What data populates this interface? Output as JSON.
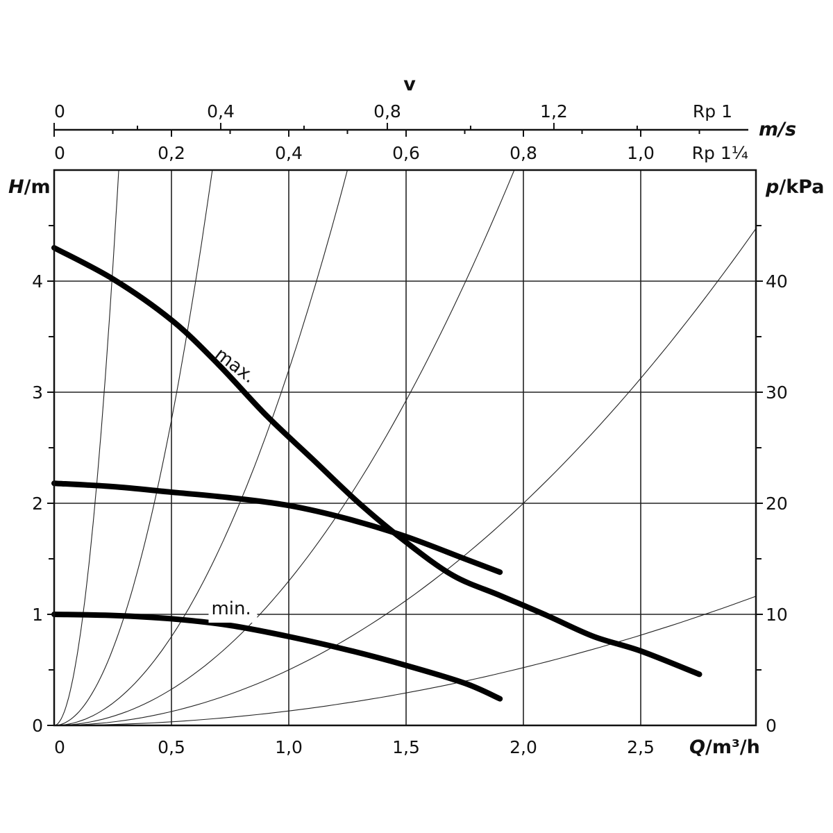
{
  "chart_data": {
    "type": "line",
    "xlabel_prefix": "Q",
    "xlabel_unit": "/m³/h",
    "ylabel_left_prefix": "H",
    "ylabel_left_unit": "/m",
    "ylabel_right_prefix": "p",
    "ylabel_right_unit": "/kPa",
    "top_axis_title": "v",
    "top_axis_unit": "m/s",
    "xlim": [
      0,
      3.0
    ],
    "ylim": [
      0,
      5.0
    ],
    "grid": true,
    "x_ticks": [
      {
        "value": 0,
        "label": "0"
      },
      {
        "value": 0.5,
        "label": "0,5"
      },
      {
        "value": 1.0,
        "label": "1,0"
      },
      {
        "value": 1.5,
        "label": "1,5"
      },
      {
        "value": 2.0,
        "label": "2,0"
      },
      {
        "value": 2.5,
        "label": "2,5"
      }
    ],
    "y_left_ticks": [
      {
        "value": 0,
        "label": "0"
      },
      {
        "value": 1,
        "label": "1"
      },
      {
        "value": 2,
        "label": "2"
      },
      {
        "value": 3,
        "label": "3"
      },
      {
        "value": 4,
        "label": "4"
      }
    ],
    "y_right_ticks": [
      {
        "value": 0,
        "label": "0"
      },
      {
        "value": 1,
        "label": "10"
      },
      {
        "value": 2,
        "label": "20"
      },
      {
        "value": 3,
        "label": "30"
      },
      {
        "value": 4,
        "label": "40"
      }
    ],
    "velocity_scales": [
      {
        "name": "Rp 1",
        "ticks": [
          {
            "q": 0,
            "label": "0"
          },
          {
            "q": 0.71,
            "label": "0,4"
          },
          {
            "q": 1.42,
            "label": "0,8"
          },
          {
            "q": 2.13,
            "label": "1,2"
          }
        ],
        "minor_ticks_q": [
          0.355,
          1.065,
          1.775,
          2.485
        ]
      },
      {
        "name": "Rp 1¼",
        "ticks": [
          {
            "q": 0,
            "label": "0"
          },
          {
            "q": 0.5,
            "label": "0,2"
          },
          {
            "q": 1.0,
            "label": "0,4"
          },
          {
            "q": 1.5,
            "label": "0,6"
          },
          {
            "q": 2.0,
            "label": "0,8"
          },
          {
            "q": 2.5,
            "label": "1,0"
          }
        ],
        "minor_ticks_q": [
          0.25,
          0.75,
          1.25,
          1.75,
          2.25,
          2.75
        ]
      }
    ],
    "series": [
      {
        "name": "max.",
        "x": [
          0,
          0.25,
          0.5,
          0.7,
          0.9,
          1.1,
          1.3,
          1.5,
          1.7,
          1.9,
          2.1,
          2.3,
          2.5,
          2.75
        ],
        "y": [
          4.3,
          4.02,
          3.65,
          3.25,
          2.8,
          2.4,
          2.0,
          1.65,
          1.35,
          1.17,
          0.99,
          0.8,
          0.67,
          0.46
        ]
      },
      {
        "name": "",
        "x": [
          0,
          0.25,
          0.5,
          0.75,
          1.0,
          1.25,
          1.5,
          1.75,
          1.9
        ],
        "y": [
          2.18,
          2.15,
          2.1,
          2.05,
          1.98,
          1.86,
          1.7,
          1.5,
          1.38
        ]
      },
      {
        "name": "min.",
        "x": [
          0,
          0.25,
          0.5,
          0.75,
          1.0,
          1.25,
          1.5,
          1.75,
          1.9
        ],
        "y": [
          1.0,
          0.99,
          0.96,
          0.9,
          0.8,
          0.68,
          0.54,
          0.38,
          0.24
        ]
      }
    ],
    "system_curves_k": [
      66.0,
      11.0,
      3.2,
      1.3,
      0.5,
      0.13
    ],
    "annotations": [
      {
        "text": "max.",
        "x": 0.68,
        "y": 3.32,
        "rotation": 37
      },
      {
        "text": "min.",
        "x": 0.67,
        "y": 1.0,
        "rotation": 0
      }
    ]
  }
}
